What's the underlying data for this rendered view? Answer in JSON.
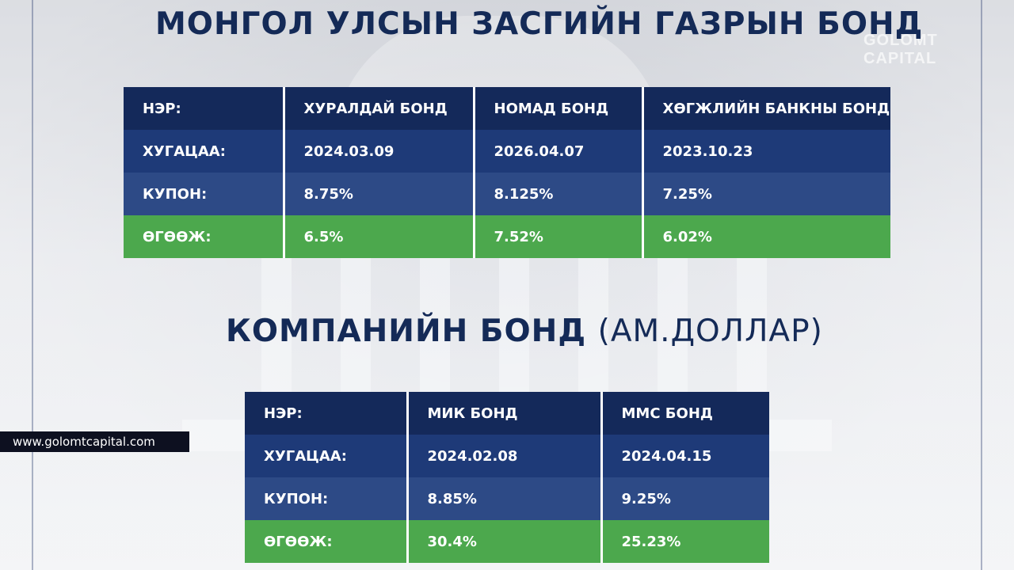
{
  "watermark": {
    "brand": "GOLOMT CAPITAL"
  },
  "government": {
    "title": "МОНГОЛ УЛСЫН ЗАСГИЙН ГАЗРЫН БОНД",
    "rows": {
      "name": {
        "label": "НЭР:",
        "values": [
          "ХУРАЛДАЙ БОНД",
          "НОМАД БОНД",
          "ХӨГЖЛИЙН БАНКНЫ БОНД"
        ]
      },
      "maturity": {
        "label": "ХУГАЦАА:",
        "values": [
          "2024.03.09",
          "2026.04.07",
          "2023.10.23"
        ]
      },
      "coupon": {
        "label": "КУПОН:",
        "values": [
          "8.75%",
          "8.125%",
          "7.25%"
        ]
      },
      "yield": {
        "label": "ӨГӨӨЖ:",
        "values": [
          "6.5%",
          "7.52%",
          "6.02%"
        ]
      }
    }
  },
  "corporate": {
    "title": "КОМПАНИЙН БОНД",
    "title_suffix": "(АМ.ДОЛЛАР)",
    "rows": {
      "name": {
        "label": "НЭР:",
        "values": [
          "МИК БОНД",
          "ММС БОНД"
        ]
      },
      "maturity": {
        "label": "ХУГАЦАА:",
        "values": [
          "2024.02.08",
          "2024.04.15"
        ]
      },
      "coupon": {
        "label": "КУПОН:",
        "values": [
          "8.85%",
          "9.25%"
        ]
      },
      "yield": {
        "label": "ӨГӨӨЖ:",
        "values": [
          "30.4%",
          "25.23%"
        ]
      }
    }
  },
  "website": {
    "url": "www.golomtcapital.com"
  },
  "colors": {
    "heading": "#142a57",
    "header_row": "#14295a",
    "maturity_row": "#1e3a78",
    "coupon_row": "#2d4a86",
    "yield_row": "#4ca84d"
  }
}
